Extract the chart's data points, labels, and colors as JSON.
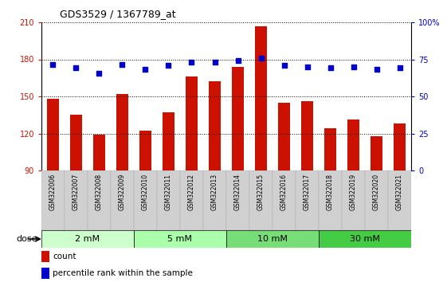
{
  "title": "GDS3529 / 1367789_at",
  "samples": [
    "GSM322006",
    "GSM322007",
    "GSM322008",
    "GSM322009",
    "GSM322010",
    "GSM322011",
    "GSM322012",
    "GSM322013",
    "GSM322014",
    "GSM322015",
    "GSM322016",
    "GSM322017",
    "GSM322018",
    "GSM322019",
    "GSM322020",
    "GSM322021"
  ],
  "bar_values": [
    148,
    135,
    119,
    152,
    122,
    137,
    166,
    162,
    174,
    207,
    145,
    146,
    124,
    131,
    118,
    128
  ],
  "dot_values_left": [
    176,
    173,
    169,
    176,
    172,
    175,
    178,
    178,
    179,
    181,
    175,
    174,
    173,
    174,
    172,
    173
  ],
  "ylim_left": [
    90,
    210
  ],
  "ylim_right": [
    0,
    100
  ],
  "yticks_left": [
    90,
    120,
    150,
    180,
    210
  ],
  "yticks_right": [
    0,
    25,
    50,
    75,
    100
  ],
  "bar_color": "#cc1100",
  "dot_color": "#0000cc",
  "dose_groups": [
    {
      "label": "2 mM",
      "start": 0,
      "end": 3,
      "color": "#ccffcc"
    },
    {
      "label": "5 mM",
      "start": 4,
      "end": 7,
      "color": "#aaffaa"
    },
    {
      "label": "10 mM",
      "start": 8,
      "end": 11,
      "color": "#77dd77"
    },
    {
      "label": "30 mM",
      "start": 12,
      "end": 15,
      "color": "#44cc44"
    }
  ],
  "legend_count_color": "#cc1100",
  "legend_dot_color": "#0000cc",
  "dose_label": "dose",
  "xtick_bg": "#cccccc",
  "xtick_border": "#aaaaaa"
}
